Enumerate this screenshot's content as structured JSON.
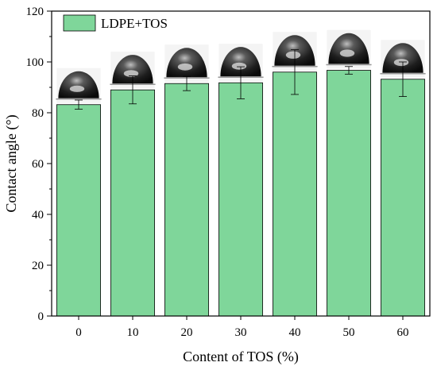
{
  "chart_data": {
    "type": "bar",
    "categories": [
      "0",
      "10",
      "20",
      "30",
      "40",
      "50",
      "60"
    ],
    "series": [
      {
        "name": "LDPE+TOS",
        "values": [
          83.2,
          89.0,
          91.5,
          91.8,
          96.0,
          96.7,
          93.2
        ],
        "errors": [
          1.8,
          5.5,
          2.8,
          6.3,
          8.8,
          1.5,
          6.8
        ]
      }
    ],
    "xlabel": "Content of  TOS (%)",
    "ylabel": "Contact angle (°)",
    "ylim": [
      0,
      120
    ],
    "yticks": [
      0,
      20,
      40,
      60,
      80,
      100,
      120
    ],
    "legend_position": "top-left",
    "grid": false,
    "bar_color": "#7fd69a",
    "droplet_images": true
  }
}
